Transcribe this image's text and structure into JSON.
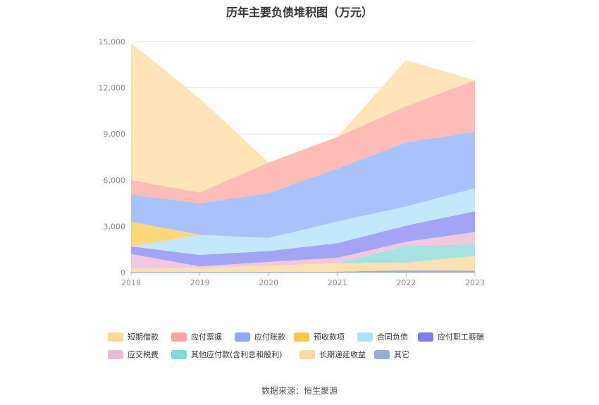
{
  "chart_data": {
    "type": "area",
    "title": "历年主要负债堆积图（万元）",
    "categories": [
      "2018",
      "2019",
      "2020",
      "2021",
      "2022",
      "2023"
    ],
    "y_ticks": [
      "0",
      "3,000",
      "6,000",
      "9,000",
      "12,000",
      "15,000"
    ],
    "ylim": [
      0,
      15000
    ],
    "stacked": true,
    "grid": true,
    "legend_position": "bottom",
    "series": [
      {
        "name": "其它",
        "color": "#94aed8",
        "values": [
          50,
          50,
          50,
          60,
          150,
          130
        ]
      },
      {
        "name": "长期递延收益",
        "color": "#fde0b0",
        "values": [
          250,
          250,
          400,
          550,
          500,
          950
        ]
      },
      {
        "name": "其他应付款(含利息和股利)",
        "color": "#a6e2e2",
        "values": [
          0,
          0,
          0,
          0,
          1100,
          750
        ]
      },
      {
        "name": "应交税费",
        "color": "#f0c8e0",
        "values": [
          900,
          100,
          250,
          350,
          250,
          800
        ]
      },
      {
        "name": "应付职工薪酬",
        "color": "#a3a4f5",
        "values": [
          500,
          750,
          700,
          950,
          1050,
          1350
        ]
      },
      {
        "name": "合同负债",
        "color": "#c4e8fb",
        "values": [
          0,
          1300,
          850,
          1400,
          1250,
          1500
        ]
      },
      {
        "name": "预收款项",
        "color": "#ffd77a",
        "values": [
          1600,
          0,
          0,
          0,
          0,
          0
        ]
      },
      {
        "name": "应付账款",
        "color": "#a9c1fd",
        "values": [
          1750,
          2050,
          2900,
          3450,
          4150,
          3650
        ]
      },
      {
        "name": "应付票据",
        "color": "#fdbcb6",
        "values": [
          950,
          700,
          2000,
          2050,
          2350,
          3350
        ]
      },
      {
        "name": "短期借款",
        "color": "#fee4b8",
        "values": [
          8900,
          6100,
          0,
          0,
          3000,
          0
        ]
      }
    ],
    "legend_order": [
      "短期借款",
      "应付票据",
      "应付账款",
      "预收款项",
      "合同负债",
      "应付职工薪酬",
      "应交税费",
      "其他应付款(含利息和股利)",
      "长期递延收益",
      "其它"
    ],
    "legend_colors": {
      "短期借款": "#fdd79b",
      "应付票据": "#f8a59d",
      "应付账款": "#8ea9f8",
      "预收款项": "#fcc84a",
      "合同负债": "#aee0fa",
      "应付职工薪酬": "#7d7ff0",
      "应交税费": "#e8bcd8",
      "其他应付款(含利息和股利)": "#88d6d6",
      "长期递延收益": "#fcd9a0",
      "其它": "#94aed8"
    }
  },
  "source": "数据来源：恒生聚源"
}
